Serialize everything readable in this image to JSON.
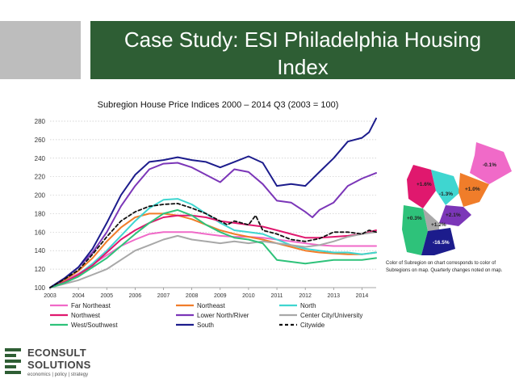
{
  "header": {
    "title_line1": "Case Study: ESI Philadelphia Housing",
    "title_line2": "Index"
  },
  "colors": {
    "header_green": "#2e5e34",
    "side_bar_gray": "#bdbdbd"
  },
  "chart_data": {
    "type": "line",
    "title": "Subregion House Price Indices 2000 – 2014 Q3 (2003 = 100)",
    "xlabel": "",
    "ylabel": "",
    "xlim": [
      2003.0,
      2014.5
    ],
    "ylim": [
      100,
      280
    ],
    "x_ticks": [
      2003,
      2004,
      2005,
      2006,
      2007,
      2008,
      2009,
      2010,
      2011,
      2012,
      2013,
      2014
    ],
    "y_ticks": [
      100,
      120,
      140,
      160,
      180,
      200,
      220,
      240,
      260,
      280
    ],
    "grid": "horizontal-dotted",
    "legend_position": "bottom",
    "series": [
      {
        "name": "Far Northeast",
        "color": "#f06ac8",
        "dash": false,
        "x": [
          2003.0,
          2003.5,
          2004.0,
          2004.5,
          2005.0,
          2005.5,
          2006.0,
          2006.5,
          2007.0,
          2007.5,
          2008.0,
          2008.5,
          2009.0,
          2009.5,
          2010.0,
          2010.5,
          2011.0,
          2011.5,
          2012.0,
          2012.5,
          2013.0,
          2013.5,
          2014.0,
          2014.5
        ],
        "y": [
          100,
          107,
          115,
          125,
          135,
          145,
          152,
          158,
          160,
          160,
          160,
          158,
          156,
          155,
          155,
          154,
          152,
          150,
          148,
          146,
          145,
          145,
          145,
          145
        ]
      },
      {
        "name": "Northeast",
        "color": "#f07d2a",
        "dash": false,
        "x": [
          2003.0,
          2003.5,
          2004.0,
          2004.5,
          2005.0,
          2005.5,
          2006.0,
          2006.5,
          2007.0,
          2007.5,
          2008.0,
          2008.5,
          2009.0,
          2009.5,
          2010.0,
          2010.5,
          2011.0,
          2011.5,
          2012.0,
          2012.5,
          2013.0,
          2013.5,
          2014.0,
          2014.5
        ],
        "y": [
          100,
          108,
          118,
          132,
          150,
          165,
          176,
          180,
          180,
          178,
          174,
          168,
          162,
          158,
          155,
          152,
          148,
          144,
          140,
          138,
          137,
          136,
          136,
          138
        ]
      },
      {
        "name": "North",
        "color": "#3fd6d0",
        "dash": false,
        "x": [
          2003.0,
          2003.5,
          2004.0,
          2004.5,
          2005.0,
          2005.5,
          2006.0,
          2006.5,
          2007.0,
          2007.5,
          2008.0,
          2008.5,
          2009.0,
          2009.5,
          2010.0,
          2010.5,
          2011.0,
          2011.5,
          2012.0,
          2012.5,
          2013.0,
          2013.5,
          2014.0,
          2014.5
        ],
        "y": [
          100,
          106,
          114,
          126,
          140,
          156,
          172,
          186,
          195,
          196,
          190,
          180,
          170,
          162,
          160,
          158,
          152,
          146,
          142,
          140,
          138,
          138,
          136,
          138
        ]
      },
      {
        "name": "Northwest",
        "color": "#e0186e",
        "dash": false,
        "x": [
          2003.0,
          2003.5,
          2004.0,
          2004.5,
          2005.0,
          2005.5,
          2006.0,
          2006.5,
          2007.0,
          2007.5,
          2008.0,
          2008.5,
          2009.0,
          2009.5,
          2010.0,
          2010.5,
          2011.0,
          2011.5,
          2012.0,
          2012.5,
          2013.0,
          2013.5,
          2014.0,
          2014.5
        ],
        "y": [
          100,
          106,
          114,
          124,
          138,
          152,
          162,
          170,
          176,
          178,
          178,
          176,
          172,
          170,
          168,
          166,
          162,
          158,
          154,
          154,
          155,
          156,
          158,
          162
        ]
      },
      {
        "name": "Lower North/River",
        "color": "#7b36b8",
        "dash": false,
        "x": [
          2003.0,
          2003.5,
          2004.0,
          2004.5,
          2005.0,
          2005.5,
          2006.0,
          2006.5,
          2007.0,
          2007.5,
          2008.0,
          2008.5,
          2009.0,
          2009.5,
          2010.0,
          2010.5,
          2011.0,
          2011.5,
          2012.0,
          2012.25,
          2012.5,
          2013.0,
          2013.5,
          2014.0,
          2014.5
        ],
        "y": [
          100,
          110,
          122,
          138,
          160,
          188,
          210,
          228,
          234,
          235,
          230,
          222,
          214,
          228,
          225,
          212,
          194,
          192,
          182,
          176,
          184,
          192,
          210,
          218,
          224
        ]
      },
      {
        "name": "Center City/University",
        "color": "#a8a8a8",
        "dash": false,
        "x": [
          2003.0,
          2003.5,
          2004.0,
          2004.5,
          2005.0,
          2005.5,
          2006.0,
          2006.5,
          2007.0,
          2007.5,
          2008.0,
          2008.5,
          2009.0,
          2009.5,
          2010.0,
          2010.5,
          2011.0,
          2011.5,
          2012.0,
          2012.5,
          2013.0,
          2013.5,
          2014.0,
          2014.5
        ],
        "y": [
          100,
          104,
          108,
          114,
          120,
          130,
          140,
          146,
          152,
          156,
          152,
          150,
          148,
          150,
          148,
          150,
          148,
          146,
          144,
          146,
          150,
          155,
          158,
          160
        ]
      },
      {
        "name": "West/Southwest",
        "color": "#2ec27a",
        "dash": false,
        "x": [
          2003.0,
          2003.5,
          2004.0,
          2004.5,
          2005.0,
          2005.5,
          2006.0,
          2006.5,
          2007.0,
          2007.5,
          2008.0,
          2008.5,
          2009.0,
          2009.5,
          2010.0,
          2010.5,
          2011.0,
          2011.5,
          2012.0,
          2012.5,
          2013.0,
          2013.5,
          2014.0,
          2014.5
        ],
        "y": [
          100,
          105,
          112,
          122,
          132,
          145,
          158,
          170,
          180,
          184,
          178,
          168,
          160,
          154,
          152,
          148,
          130,
          128,
          126,
          128,
          130,
          130,
          130,
          132
        ]
      },
      {
        "name": "South",
        "color": "#1c1c8c",
        "dash": false,
        "x": [
          2003.0,
          2003.5,
          2004.0,
          2004.5,
          2005.0,
          2005.5,
          2006.0,
          2006.5,
          2007.0,
          2007.5,
          2008.0,
          2008.5,
          2009.0,
          2009.5,
          2010.0,
          2010.5,
          2011.0,
          2011.5,
          2012.0,
          2012.5,
          2013.0,
          2013.5,
          2014.0,
          2014.25,
          2014.5
        ],
        "y": [
          100,
          110,
          122,
          142,
          170,
          200,
          222,
          236,
          238,
          241,
          238,
          236,
          230,
          236,
          242,
          235,
          210,
          212,
          210,
          225,
          240,
          258,
          262,
          268,
          283
        ]
      },
      {
        "name": "Citywide",
        "color": "#111111",
        "dash": true,
        "x": [
          2003.0,
          2003.5,
          2004.0,
          2004.5,
          2005.0,
          2005.5,
          2006.0,
          2006.5,
          2007.0,
          2007.5,
          2008.0,
          2008.5,
          2009.0,
          2009.25,
          2009.5,
          2010.0,
          2010.25,
          2010.5,
          2011.0,
          2011.5,
          2012.0,
          2012.5,
          2013.0,
          2013.5,
          2014.0,
          2014.25,
          2014.5
        ],
        "y": [
          100,
          109,
          119,
          136,
          155,
          172,
          182,
          188,
          190,
          191,
          186,
          180,
          172,
          168,
          172,
          168,
          178,
          162,
          158,
          152,
          150,
          153,
          160,
          160,
          158,
          162,
          160
        ]
      }
    ]
  },
  "map": {
    "labels": [
      "-0.1%",
      "+1.6%",
      "-1.3%",
      "+1.0%",
      "+0.3%",
      "+2.1%",
      "+1.2%",
      "-16.5%"
    ],
    "caption": "Color of Subregion on chart corresponds to color of Subregions on map. Quarterly changes noted on map."
  },
  "logo": {
    "name_line1": "ECONSULT",
    "name_line2": "SOLUTIONS",
    "tagline": "economics | policy | strategy"
  }
}
